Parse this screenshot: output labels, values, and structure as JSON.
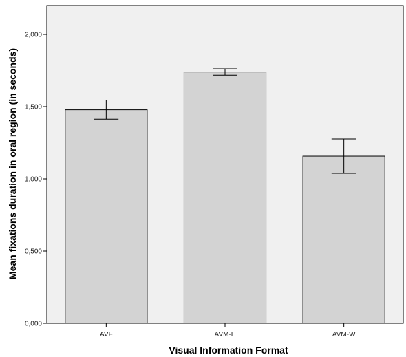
{
  "chart_data": {
    "type": "bar",
    "title": "",
    "xlabel": "Visual Information Format",
    "ylabel": "Mean fixations duration in oral region (in seconds)",
    "categories": [
      "AVF",
      "AVM-E",
      "AVM-W"
    ],
    "values": [
      1.478,
      1.74,
      1.157
    ],
    "error_low": [
      1.413,
      1.718,
      1.038
    ],
    "error_high": [
      1.545,
      1.762,
      1.276
    ],
    "ylim": [
      0,
      2.2
    ],
    "yticks": [
      0,
      0.5,
      1.0,
      1.5,
      2.0
    ],
    "ytick_labels": [
      "0,000",
      "0,500",
      "1,000",
      "1,500",
      "2,000"
    ],
    "grid": false,
    "legend": "none",
    "colors": {
      "plot_background": "#f0f0f0",
      "bar_fill": "#d3d3d3",
      "bar_stroke": "#000000",
      "error_bar": "#000000"
    }
  }
}
